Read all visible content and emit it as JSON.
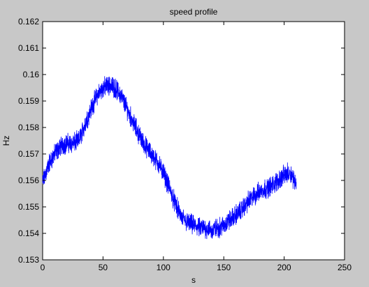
{
  "chart_data": {
    "type": "line",
    "title": "speed profile",
    "xlabel": "s",
    "ylabel": "Hz",
    "xlim": [
      0,
      250
    ],
    "ylim": [
      0.153,
      0.162
    ],
    "xticks": [
      0,
      50,
      100,
      150,
      200,
      250
    ],
    "yticks": [
      0.153,
      0.154,
      0.155,
      0.156,
      0.157,
      0.158,
      0.159,
      0.16,
      0.161,
      0.162
    ],
    "xtick_labels": [
      "0",
      "50",
      "100",
      "150",
      "200",
      "250"
    ],
    "ytick_labels": [
      "0.153",
      "0.154",
      "0.155",
      "0.156",
      "0.157",
      "0.158",
      "0.159",
      "0.16",
      "0.161",
      "0.162"
    ],
    "grid": false,
    "noise_amplitude": 0.00045,
    "series": [
      {
        "color": "#0000ff",
        "x": [
          0,
          5,
          10,
          15,
          20,
          25,
          30,
          35,
          40,
          45,
          50,
          55,
          60,
          65,
          70,
          75,
          80,
          85,
          90,
          95,
          100,
          105,
          110,
          115,
          120,
          125,
          130,
          135,
          140,
          145,
          150,
          155,
          160,
          165,
          170,
          175,
          180,
          185,
          190,
          195,
          200,
          205,
          210
        ],
        "y": [
          0.1559,
          0.1566,
          0.157,
          0.1573,
          0.1574,
          0.1574,
          0.1575,
          0.1581,
          0.1587,
          0.1592,
          0.1595,
          0.1596,
          0.1595,
          0.1592,
          0.1587,
          0.1582,
          0.1577,
          0.1573,
          0.157,
          0.1567,
          0.1563,
          0.1557,
          0.1551,
          0.1546,
          0.1544,
          0.1543,
          0.1542,
          0.1542,
          0.1541,
          0.1542,
          0.1543,
          0.1545,
          0.1547,
          0.1549,
          0.1552,
          0.1554,
          0.1556,
          0.1557,
          0.1558,
          0.156,
          0.1562,
          0.1563,
          0.1559
        ]
      }
    ]
  }
}
